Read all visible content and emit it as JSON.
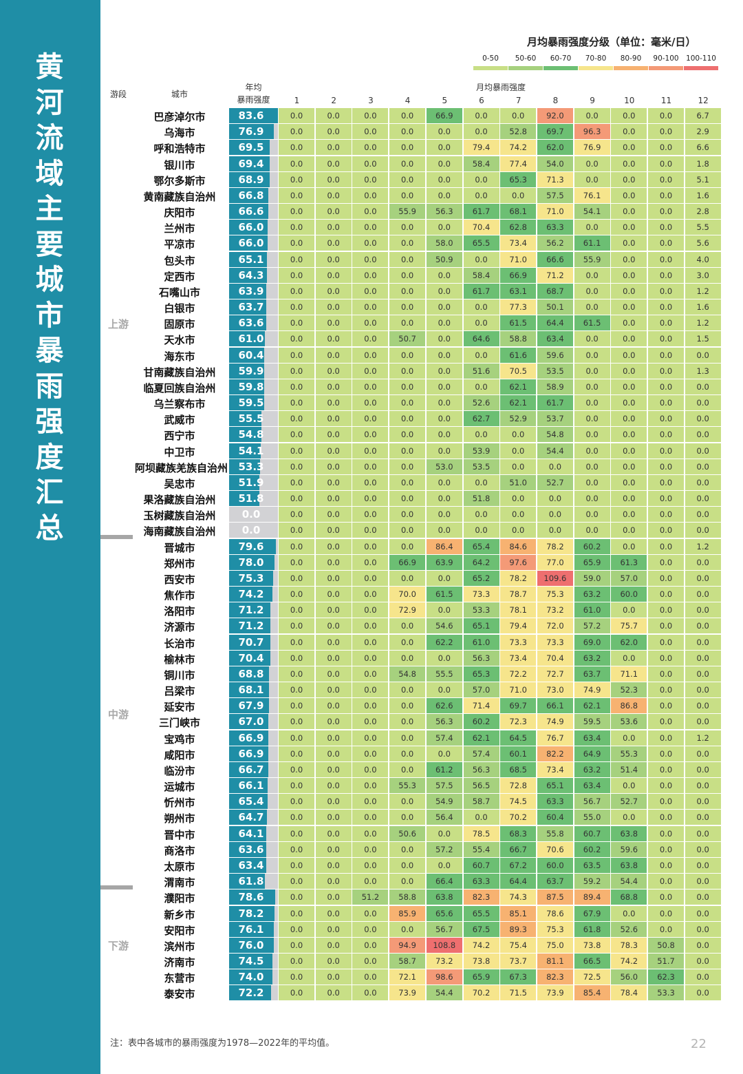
{
  "title": "黄河流域主要城市暴雨强度汇总",
  "legend": {
    "title": "月均暴雨强度分级（单位：毫米/日）",
    "items": [
      {
        "label": "0-50",
        "color": "#c8df86"
      },
      {
        "label": "50-60",
        "color": "#a6d17e"
      },
      {
        "label": "60-70",
        "color": "#6cbf73"
      },
      {
        "label": "70-80",
        "color": "#f6e58c"
      },
      {
        "label": "80-90",
        "color": "#f7b271"
      },
      {
        "label": "90-100",
        "color": "#f49a77"
      },
      {
        "label": "100-110",
        "color": "#ee6f6f"
      }
    ]
  },
  "headers": {
    "segment": "游段",
    "city": "城市",
    "annual_line1": "年均",
    "annual_line2": "暴雨强度",
    "monthly": "月均暴雨强度",
    "months": [
      "1",
      "2",
      "3",
      "4",
      "5",
      "6",
      "7",
      "8",
      "9",
      "10",
      "11",
      "12"
    ]
  },
  "segments": [
    {
      "label": "上游",
      "count": 27
    },
    {
      "label": "中游",
      "count": 22
    },
    {
      "label": "下游",
      "count": 7
    }
  ],
  "rows": [
    {
      "city": "巴彦淖尔市",
      "annual": "83.6",
      "months": [
        "0.0",
        "0.0",
        "0.0",
        "0.0",
        "66.9",
        "0.0",
        "0.0",
        "92.0",
        "0.0",
        "0.0",
        "0.0",
        "6.7"
      ]
    },
    {
      "city": "乌海市",
      "annual": "76.9",
      "months": [
        "0.0",
        "0.0",
        "0.0",
        "0.0",
        "0.0",
        "0.0",
        "52.8",
        "69.7",
        "96.3",
        "0.0",
        "0.0",
        "2.9"
      ]
    },
    {
      "city": "呼和浩特市",
      "annual": "69.5",
      "months": [
        "0.0",
        "0.0",
        "0.0",
        "0.0",
        "0.0",
        "79.4",
        "74.2",
        "62.0",
        "76.9",
        "0.0",
        "0.0",
        "6.6"
      ]
    },
    {
      "city": "银川市",
      "annual": "69.4",
      "months": [
        "0.0",
        "0.0",
        "0.0",
        "0.0",
        "0.0",
        "58.4",
        "77.4",
        "54.0",
        "0.0",
        "0.0",
        "0.0",
        "1.8"
      ]
    },
    {
      "city": "鄂尔多斯市",
      "annual": "68.9",
      "months": [
        "0.0",
        "0.0",
        "0.0",
        "0.0",
        "0.0",
        "0.0",
        "65.3",
        "71.3",
        "0.0",
        "0.0",
        "0.0",
        "5.1"
      ]
    },
    {
      "city": "黄南藏族自治州",
      "annual": "66.8",
      "months": [
        "0.0",
        "0.0",
        "0.0",
        "0.0",
        "0.0",
        "0.0",
        "0.0",
        "57.5",
        "76.1",
        "0.0",
        "0.0",
        "1.6"
      ]
    },
    {
      "city": "庆阳市",
      "annual": "66.6",
      "months": [
        "0.0",
        "0.0",
        "0.0",
        "55.9",
        "56.3",
        "61.7",
        "68.1",
        "71.0",
        "54.1",
        "0.0",
        "0.0",
        "2.8"
      ]
    },
    {
      "city": "兰州市",
      "annual": "66.0",
      "months": [
        "0.0",
        "0.0",
        "0.0",
        "0.0",
        "0.0",
        "70.4",
        "62.8",
        "63.3",
        "0.0",
        "0.0",
        "0.0",
        "5.5"
      ]
    },
    {
      "city": "平凉市",
      "annual": "66.0",
      "months": [
        "0.0",
        "0.0",
        "0.0",
        "0.0",
        "58.0",
        "65.5",
        "73.4",
        "56.2",
        "61.1",
        "0.0",
        "0.0",
        "5.6"
      ]
    },
    {
      "city": "包头市",
      "annual": "65.1",
      "months": [
        "0.0",
        "0.0",
        "0.0",
        "0.0",
        "50.9",
        "0.0",
        "71.0",
        "66.6",
        "55.9",
        "0.0",
        "0.0",
        "4.0"
      ]
    },
    {
      "city": "定西市",
      "annual": "64.3",
      "months": [
        "0.0",
        "0.0",
        "0.0",
        "0.0",
        "0.0",
        "58.4",
        "66.9",
        "71.2",
        "0.0",
        "0.0",
        "0.0",
        "3.0"
      ]
    },
    {
      "city": "石嘴山市",
      "annual": "63.9",
      "months": [
        "0.0",
        "0.0",
        "0.0",
        "0.0",
        "0.0",
        "61.7",
        "63.1",
        "68.7",
        "0.0",
        "0.0",
        "0.0",
        "1.2"
      ]
    },
    {
      "city": "白银市",
      "annual": "63.7",
      "months": [
        "0.0",
        "0.0",
        "0.0",
        "0.0",
        "0.0",
        "0.0",
        "77.3",
        "50.1",
        "0.0",
        "0.0",
        "0.0",
        "1.6"
      ]
    },
    {
      "city": "固原市",
      "annual": "63.6",
      "months": [
        "0.0",
        "0.0",
        "0.0",
        "0.0",
        "0.0",
        "0.0",
        "61.5",
        "64.4",
        "61.5",
        "0.0",
        "0.0",
        "1.2"
      ]
    },
    {
      "city": "天水市",
      "annual": "61.0",
      "months": [
        "0.0",
        "0.0",
        "0.0",
        "50.7",
        "0.0",
        "64.6",
        "58.8",
        "63.4",
        "0.0",
        "0.0",
        "0.0",
        "1.5"
      ]
    },
    {
      "city": "海东市",
      "annual": "60.4",
      "months": [
        "0.0",
        "0.0",
        "0.0",
        "0.0",
        "0.0",
        "0.0",
        "61.6",
        "59.6",
        "0.0",
        "0.0",
        "0.0",
        "0.0"
      ]
    },
    {
      "city": "甘南藏族自治州",
      "annual": "59.9",
      "months": [
        "0.0",
        "0.0",
        "0.0",
        "0.0",
        "0.0",
        "51.6",
        "70.5",
        "53.5",
        "0.0",
        "0.0",
        "0.0",
        "1.3"
      ]
    },
    {
      "city": "临夏回族自治州",
      "annual": "59.8",
      "months": [
        "0.0",
        "0.0",
        "0.0",
        "0.0",
        "0.0",
        "0.0",
        "62.1",
        "58.9",
        "0.0",
        "0.0",
        "0.0",
        "0.0"
      ]
    },
    {
      "city": "乌兰察布市",
      "annual": "59.5",
      "months": [
        "0.0",
        "0.0",
        "0.0",
        "0.0",
        "0.0",
        "52.6",
        "62.1",
        "61.7",
        "0.0",
        "0.0",
        "0.0",
        "0.0"
      ]
    },
    {
      "city": "武威市",
      "annual": "55.5",
      "months": [
        "0.0",
        "0.0",
        "0.0",
        "0.0",
        "0.0",
        "62.7",
        "52.9",
        "53.7",
        "0.0",
        "0.0",
        "0.0",
        "0.0"
      ]
    },
    {
      "city": "西宁市",
      "annual": "54.8",
      "months": [
        "0.0",
        "0.0",
        "0.0",
        "0.0",
        "0.0",
        "0.0",
        "0.0",
        "54.8",
        "0.0",
        "0.0",
        "0.0",
        "0.0"
      ]
    },
    {
      "city": "中卫市",
      "annual": "54.1",
      "months": [
        "0.0",
        "0.0",
        "0.0",
        "0.0",
        "0.0",
        "53.9",
        "0.0",
        "54.4",
        "0.0",
        "0.0",
        "0.0",
        "0.0"
      ]
    },
    {
      "city": "阿坝藏族羌族自治州",
      "annual": "53.3",
      "months": [
        "0.0",
        "0.0",
        "0.0",
        "0.0",
        "53.0",
        "53.5",
        "0.0",
        "0.0",
        "0.0",
        "0.0",
        "0.0",
        "0.0"
      ]
    },
    {
      "city": "吴忠市",
      "annual": "51.9",
      "months": [
        "0.0",
        "0.0",
        "0.0",
        "0.0",
        "0.0",
        "0.0",
        "51.0",
        "52.7",
        "0.0",
        "0.0",
        "0.0",
        "0.0"
      ]
    },
    {
      "city": "果洛藏族自治州",
      "annual": "51.8",
      "months": [
        "0.0",
        "0.0",
        "0.0",
        "0.0",
        "0.0",
        "51.8",
        "0.0",
        "0.0",
        "0.0",
        "0.0",
        "0.0",
        "0.0"
      ]
    },
    {
      "city": "玉树藏族自治州",
      "annual": "0.0",
      "months": [
        "0.0",
        "0.0",
        "0.0",
        "0.0",
        "0.0",
        "0.0",
        "0.0",
        "0.0",
        "0.0",
        "0.0",
        "0.0",
        "0.0"
      ]
    },
    {
      "city": "海南藏族自治州",
      "annual": "0.0",
      "months": [
        "0.0",
        "0.0",
        "0.0",
        "0.0",
        "0.0",
        "0.0",
        "0.0",
        "0.0",
        "0.0",
        "0.0",
        "0.0",
        "0.0"
      ]
    },
    {
      "city": "晋城市",
      "annual": "79.6",
      "months": [
        "0.0",
        "0.0",
        "0.0",
        "0.0",
        "86.4",
        "65.4",
        "84.6",
        "78.2",
        "60.2",
        "0.0",
        "0.0",
        "1.2"
      ]
    },
    {
      "city": "郑州市",
      "annual": "78.0",
      "months": [
        "0.0",
        "0.0",
        "0.0",
        "66.9",
        "63.9",
        "64.2",
        "97.6",
        "77.0",
        "65.9",
        "61.3",
        "0.0",
        "0.0"
      ]
    },
    {
      "city": "西安市",
      "annual": "75.3",
      "months": [
        "0.0",
        "0.0",
        "0.0",
        "0.0",
        "0.0",
        "65.2",
        "78.2",
        "109.6",
        "59.0",
        "57.0",
        "0.0",
        "0.0"
      ]
    },
    {
      "city": "焦作市",
      "annual": "74.2",
      "months": [
        "0.0",
        "0.0",
        "0.0",
        "70.0",
        "61.5",
        "73.3",
        "78.7",
        "75.3",
        "63.2",
        "60.0",
        "0.0",
        "0.0"
      ]
    },
    {
      "city": "洛阳市",
      "annual": "71.2",
      "months": [
        "0.0",
        "0.0",
        "0.0",
        "72.9",
        "0.0",
        "53.3",
        "78.1",
        "73.2",
        "61.0",
        "0.0",
        "0.0",
        "0.0"
      ]
    },
    {
      "city": "济源市",
      "annual": "71.2",
      "months": [
        "0.0",
        "0.0",
        "0.0",
        "0.0",
        "54.6",
        "65.1",
        "79.4",
        "72.0",
        "57.2",
        "75.7",
        "0.0",
        "0.0"
      ]
    },
    {
      "city": "长治市",
      "annual": "70.7",
      "months": [
        "0.0",
        "0.0",
        "0.0",
        "0.0",
        "62.2",
        "61.0",
        "73.3",
        "73.3",
        "69.0",
        "62.0",
        "0.0",
        "0.0"
      ]
    },
    {
      "city": "榆林市",
      "annual": "70.4",
      "months": [
        "0.0",
        "0.0",
        "0.0",
        "0.0",
        "0.0",
        "56.3",
        "73.4",
        "70.4",
        "63.2",
        "0.0",
        "0.0",
        "0.0"
      ]
    },
    {
      "city": "铜川市",
      "annual": "68.8",
      "months": [
        "0.0",
        "0.0",
        "0.0",
        "54.8",
        "55.5",
        "65.3",
        "72.2",
        "72.7",
        "63.7",
        "71.1",
        "0.0",
        "0.0"
      ]
    },
    {
      "city": "吕梁市",
      "annual": "68.1",
      "months": [
        "0.0",
        "0.0",
        "0.0",
        "0.0",
        "0.0",
        "57.0",
        "71.0",
        "73.0",
        "74.9",
        "52.3",
        "0.0",
        "0.0"
      ]
    },
    {
      "city": "延安市",
      "annual": "67.9",
      "months": [
        "0.0",
        "0.0",
        "0.0",
        "0.0",
        "62.6",
        "71.4",
        "69.7",
        "66.1",
        "62.1",
        "86.8",
        "0.0",
        "0.0"
      ]
    },
    {
      "city": "三门峡市",
      "annual": "67.0",
      "months": [
        "0.0",
        "0.0",
        "0.0",
        "0.0",
        "56.3",
        "60.2",
        "72.3",
        "74.9",
        "59.5",
        "53.6",
        "0.0",
        "0.0"
      ]
    },
    {
      "city": "宝鸡市",
      "annual": "66.9",
      "months": [
        "0.0",
        "0.0",
        "0.0",
        "0.0",
        "57.4",
        "62.1",
        "64.5",
        "76.7",
        "63.4",
        "0.0",
        "0.0",
        "1.2"
      ]
    },
    {
      "city": "咸阳市",
      "annual": "66.9",
      "months": [
        "0.0",
        "0.0",
        "0.0",
        "0.0",
        "0.0",
        "57.4",
        "60.1",
        "82.2",
        "64.9",
        "55.3",
        "0.0",
        "0.0"
      ]
    },
    {
      "city": "临汾市",
      "annual": "66.7",
      "months": [
        "0.0",
        "0.0",
        "0.0",
        "0.0",
        "61.2",
        "56.3",
        "68.5",
        "73.4",
        "63.2",
        "51.4",
        "0.0",
        "0.0"
      ]
    },
    {
      "city": "运城市",
      "annual": "66.1",
      "months": [
        "0.0",
        "0.0",
        "0.0",
        "55.3",
        "57.5",
        "56.5",
        "72.8",
        "65.1",
        "63.4",
        "0.0",
        "0.0",
        "0.0"
      ]
    },
    {
      "city": "忻州市",
      "annual": "65.4",
      "months": [
        "0.0",
        "0.0",
        "0.0",
        "0.0",
        "54.9",
        "58.7",
        "74.5",
        "63.3",
        "56.7",
        "52.7",
        "0.0",
        "0.0"
      ]
    },
    {
      "city": "朔州市",
      "annual": "64.7",
      "months": [
        "0.0",
        "0.0",
        "0.0",
        "0.0",
        "56.4",
        "0.0",
        "70.2",
        "60.4",
        "55.0",
        "0.0",
        "0.0",
        "0.0"
      ]
    },
    {
      "city": "晋中市",
      "annual": "64.1",
      "months": [
        "0.0",
        "0.0",
        "0.0",
        "50.6",
        "0.0",
        "78.5",
        "68.3",
        "55.8",
        "60.7",
        "63.8",
        "0.0",
        "0.0"
      ]
    },
    {
      "city": "商洛市",
      "annual": "63.6",
      "months": [
        "0.0",
        "0.0",
        "0.0",
        "0.0",
        "57.2",
        "55.4",
        "66.7",
        "70.6",
        "60.2",
        "59.6",
        "0.0",
        "0.0"
      ]
    },
    {
      "city": "太原市",
      "annual": "63.4",
      "months": [
        "0.0",
        "0.0",
        "0.0",
        "0.0",
        "0.0",
        "60.7",
        "67.2",
        "60.0",
        "63.5",
        "63.8",
        "0.0",
        "0.0"
      ]
    },
    {
      "city": "渭南市",
      "annual": "61.8",
      "months": [
        "0.0",
        "0.0",
        "0.0",
        "0.0",
        "66.4",
        "63.3",
        "64.4",
        "63.7",
        "59.2",
        "54.4",
        "0.0",
        "0.0"
      ]
    },
    {
      "city": "濮阳市",
      "annual": "78.6",
      "months": [
        "0.0",
        "0.0",
        "51.2",
        "58.8",
        "63.8",
        "82.3",
        "74.3",
        "87.5",
        "89.4",
        "68.8",
        "0.0",
        "0.0"
      ]
    },
    {
      "city": "新乡市",
      "annual": "78.2",
      "months": [
        "0.0",
        "0.0",
        "0.0",
        "85.9",
        "65.6",
        "65.5",
        "85.1",
        "78.6",
        "67.9",
        "0.0",
        "0.0",
        "0.0"
      ]
    },
    {
      "city": "安阳市",
      "annual": "76.1",
      "months": [
        "0.0",
        "0.0",
        "0.0",
        "0.0",
        "56.7",
        "67.5",
        "89.3",
        "75.3",
        "61.8",
        "52.6",
        "0.0",
        "0.0"
      ]
    },
    {
      "city": "滨州市",
      "annual": "76.0",
      "months": [
        "0.0",
        "0.0",
        "0.0",
        "94.9",
        "108.8",
        "74.2",
        "75.4",
        "75.0",
        "73.8",
        "78.3",
        "50.8",
        "0.0"
      ]
    },
    {
      "city": "济南市",
      "annual": "74.5",
      "months": [
        "0.0",
        "0.0",
        "0.0",
        "58.7",
        "73.2",
        "73.8",
        "73.7",
        "81.1",
        "66.5",
        "74.2",
        "51.7",
        "0.0"
      ]
    },
    {
      "city": "东营市",
      "annual": "74.0",
      "months": [
        "0.0",
        "0.0",
        "0.0",
        "72.1",
        "98.6",
        "65.9",
        "67.3",
        "82.3",
        "72.5",
        "56.0",
        "62.3",
        "0.0"
      ]
    },
    {
      "city": "泰安市",
      "annual": "72.2",
      "months": [
        "0.0",
        "0.0",
        "0.0",
        "73.9",
        "54.4",
        "70.2",
        "71.5",
        "73.9",
        "85.4",
        "78.4",
        "53.3",
        "0.0"
      ]
    }
  ],
  "note": "注：表中各城市的暴雨强度为1978—2022年的平均值。",
  "page_number": "22"
}
